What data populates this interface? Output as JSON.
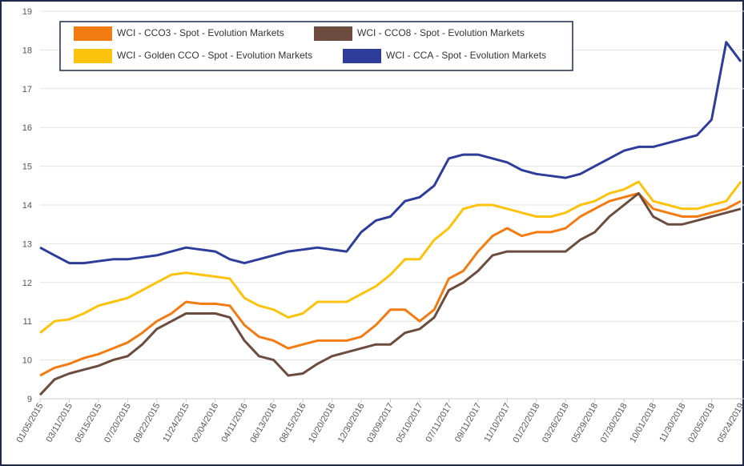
{
  "chart_data": {
    "type": "line",
    "categories": [
      "01/05/2015",
      null,
      "03/11/2015",
      null,
      "05/15/2015",
      null,
      "07/20/2015",
      null,
      "09/22/2015",
      null,
      "11/24/2015",
      null,
      "02/04/2016",
      null,
      "04/11/2016",
      null,
      "06/13/2016",
      null,
      "08/15/2016",
      null,
      "10/20/2016",
      null,
      "12/30/2016",
      null,
      "03/09/2017",
      null,
      "05/10/2017",
      null,
      "07/11/2017",
      null,
      "09/11/2017",
      null,
      "11/10/2017",
      null,
      "01/22/2018",
      null,
      "03/26/2018",
      null,
      "05/29/2018",
      null,
      "07/30/2018",
      null,
      "10/01/2018",
      null,
      "11/30/2018",
      null,
      "02/05/2019",
      null,
      "05/24/2019"
    ],
    "series": [
      {
        "name": "WCI - CCO3 - Spot - Evolution Markets",
        "color": "#f27b12",
        "values": [
          9.6,
          9.8,
          9.9,
          10.05,
          10.15,
          10.3,
          10.45,
          10.7,
          11.0,
          11.2,
          11.5,
          11.45,
          11.45,
          11.4,
          10.9,
          10.6,
          10.5,
          10.3,
          10.4,
          10.5,
          10.5,
          10.5,
          10.6,
          10.9,
          11.3,
          11.3,
          11.0,
          11.3,
          12.1,
          12.3,
          12.8,
          13.2,
          13.4,
          13.2,
          13.3,
          13.3,
          13.4,
          13.7,
          13.9,
          14.1,
          14.2,
          14.3,
          13.9,
          13.8,
          13.7,
          13.7,
          13.8,
          13.9,
          14.1
        ]
      },
      {
        "name": "WCI - CCO8 - Spot - Evolution Markets",
        "color": "#6b4c3e",
        "values": [
          9.1,
          9.5,
          9.65,
          9.75,
          9.85,
          10.0,
          10.1,
          10.4,
          10.8,
          11.0,
          11.2,
          11.2,
          11.2,
          11.1,
          10.5,
          10.1,
          10.0,
          9.6,
          9.65,
          9.9,
          10.1,
          10.2,
          10.3,
          10.4,
          10.4,
          10.7,
          10.8,
          11.1,
          11.8,
          12.0,
          12.3,
          12.7,
          12.8,
          12.8,
          12.8,
          12.8,
          12.8,
          13.1,
          13.3,
          13.7,
          14.0,
          14.3,
          13.7,
          13.5,
          13.5,
          13.6,
          13.7,
          13.8,
          13.9
        ]
      },
      {
        "name": "WCI - Golden CCO - Spot - Evolution Markets",
        "color": "#fcc30d",
        "values": [
          10.7,
          11.0,
          11.05,
          11.2,
          11.4,
          11.5,
          11.6,
          11.8,
          12.0,
          12.2,
          12.25,
          12.2,
          12.15,
          12.1,
          11.6,
          11.4,
          11.3,
          11.1,
          11.2,
          11.5,
          11.5,
          11.5,
          11.7,
          11.9,
          12.2,
          12.6,
          12.6,
          13.1,
          13.4,
          13.9,
          14.0,
          14.0,
          13.9,
          13.8,
          13.7,
          13.7,
          13.8,
          14.0,
          14.1,
          14.3,
          14.4,
          14.6,
          14.1,
          14.0,
          13.9,
          13.9,
          14.0,
          14.1,
          14.6
        ]
      },
      {
        "name": "WCI - CCA - Spot - Evolution Markets",
        "color": "#2e3c9a",
        "values": [
          12.9,
          12.7,
          12.5,
          12.5,
          12.55,
          12.6,
          12.6,
          12.65,
          12.7,
          12.8,
          12.9,
          12.85,
          12.8,
          12.6,
          12.5,
          12.6,
          12.7,
          12.8,
          12.85,
          12.9,
          12.85,
          12.8,
          13.3,
          13.6,
          13.7,
          14.1,
          14.2,
          14.5,
          15.2,
          15.3,
          15.3,
          15.2,
          15.1,
          14.9,
          14.8,
          14.75,
          14.7,
          14.8,
          15.0,
          15.2,
          15.4,
          15.5,
          15.5,
          15.6,
          15.7,
          15.8,
          16.2,
          18.2,
          17.7
        ]
      }
    ],
    "ylim": [
      9,
      19
    ],
    "yticks": [
      9,
      10,
      11,
      12,
      13,
      14,
      15,
      16,
      17,
      18,
      19
    ],
    "grid": true
  }
}
